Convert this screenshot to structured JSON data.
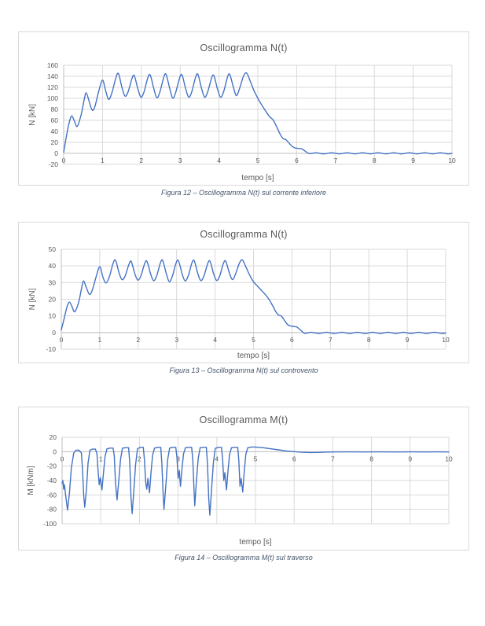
{
  "page": {
    "background": "#ffffff"
  },
  "styles": {
    "line_color": "#4472C4",
    "grid_color": "#D9D9D9",
    "axis_line_color": "#BFBFBF",
    "axis_text_color": "#595959",
    "title_color": "#595959",
    "caption_color": "#44546A",
    "panel_border_color": "#D9D9D9"
  },
  "chart_data": [
    {
      "type": "line",
      "title": "Oscillogramma N(t)",
      "xlabel": "tempo [s]",
      "ylabel": "N [kN]",
      "caption": "Figura 12 – Oscillogramma N(t) sul corrente inferiore",
      "xlim": [
        0,
        10
      ],
      "ylim": [
        -20,
        160
      ],
      "xticks": [
        0,
        1,
        2,
        3,
        4,
        5,
        6,
        7,
        8,
        9,
        10
      ],
      "yticks": [
        160,
        140,
        120,
        100,
        80,
        60,
        40,
        20,
        0,
        -20
      ],
      "grid": true,
      "legend": false,
      "line_color": "#4472C4",
      "smooth": true,
      "points": [
        [
          0,
          2
        ],
        [
          0.08,
          35
        ],
        [
          0.15,
          58
        ],
        [
          0.21,
          68
        ],
        [
          0.28,
          58
        ],
        [
          0.35,
          49
        ],
        [
          0.45,
          70
        ],
        [
          0.53,
          98
        ],
        [
          0.58,
          110
        ],
        [
          0.65,
          96
        ],
        [
          0.73,
          79
        ],
        [
          0.8,
          84
        ],
        [
          0.9,
          112
        ],
        [
          1.0,
          133
        ],
        [
          1.08,
          114
        ],
        [
          1.16,
          98
        ],
        [
          1.25,
          112
        ],
        [
          1.34,
          136
        ],
        [
          1.41,
          145
        ],
        [
          1.5,
          120
        ],
        [
          1.58,
          104
        ],
        [
          1.66,
          112
        ],
        [
          1.76,
          136
        ],
        [
          1.82,
          141
        ],
        [
          1.91,
          117
        ],
        [
          1.99,
          102
        ],
        [
          2.07,
          112
        ],
        [
          2.17,
          138
        ],
        [
          2.23,
          142
        ],
        [
          2.32,
          118
        ],
        [
          2.4,
          101
        ],
        [
          2.48,
          112
        ],
        [
          2.58,
          139
        ],
        [
          2.64,
          143
        ],
        [
          2.73,
          118
        ],
        [
          2.81,
          100
        ],
        [
          2.89,
          112
        ],
        [
          2.99,
          138
        ],
        [
          3.05,
          142
        ],
        [
          3.14,
          118
        ],
        [
          3.22,
          102
        ],
        [
          3.3,
          112
        ],
        [
          3.4,
          139
        ],
        [
          3.46,
          143
        ],
        [
          3.55,
          118
        ],
        [
          3.63,
          102
        ],
        [
          3.71,
          112
        ],
        [
          3.81,
          137
        ],
        [
          3.87,
          141
        ],
        [
          3.96,
          117
        ],
        [
          4.04,
          102
        ],
        [
          4.12,
          112
        ],
        [
          4.22,
          139
        ],
        [
          4.28,
          143
        ],
        [
          4.37,
          120
        ],
        [
          4.45,
          105
        ],
        [
          4.53,
          118
        ],
        [
          4.63,
          140
        ],
        [
          4.71,
          146
        ],
        [
          4.8,
          132
        ],
        [
          4.9,
          114
        ],
        [
          5.0,
          100
        ],
        [
          5.1,
          88
        ],
        [
          5.2,
          77
        ],
        [
          5.3,
          67
        ],
        [
          5.4,
          60
        ],
        [
          5.5,
          46
        ],
        [
          5.58,
          34
        ],
        [
          5.65,
          27
        ],
        [
          5.72,
          25
        ],
        [
          5.8,
          19
        ],
        [
          5.88,
          13
        ],
        [
          5.95,
          10
        ],
        [
          6.05,
          9
        ],
        [
          6.12,
          8.5
        ],
        [
          6.2,
          5
        ],
        [
          6.28,
          1
        ],
        [
          6.35,
          -0.5
        ],
        [
          6.5,
          1
        ],
        [
          6.7,
          -1
        ],
        [
          6.9,
          1
        ],
        [
          7.1,
          -1
        ],
        [
          7.3,
          1
        ],
        [
          7.5,
          -1
        ],
        [
          7.7,
          1
        ],
        [
          7.9,
          -1
        ],
        [
          8.1,
          1
        ],
        [
          8.3,
          -1
        ],
        [
          8.5,
          1
        ],
        [
          8.7,
          -1
        ],
        [
          8.9,
          1
        ],
        [
          9.1,
          -1
        ],
        [
          9.3,
          1
        ],
        [
          9.5,
          -1
        ],
        [
          9.7,
          1
        ],
        [
          9.9,
          -1
        ],
        [
          10,
          0
        ]
      ]
    },
    {
      "type": "line",
      "title": "Oscillogramma N(t)",
      "xlabel": "tempo [s]",
      "ylabel": "N [kN]",
      "caption": "Figura 13 – Oscillogramma N(t) sul controvento",
      "xlim": [
        0,
        10
      ],
      "ylim": [
        -10,
        50
      ],
      "xticks": [
        0,
        1,
        2,
        3,
        4,
        5,
        6,
        7,
        8,
        9,
        10
      ],
      "yticks": [
        50,
        40,
        30,
        20,
        10,
        0,
        -10
      ],
      "grid": true,
      "legend": false,
      "line_color": "#4472C4",
      "smooth": true,
      "points": [
        [
          0,
          1.5
        ],
        [
          0.08,
          9
        ],
        [
          0.15,
          15.5
        ],
        [
          0.21,
          18.3
        ],
        [
          0.28,
          15.5
        ],
        [
          0.35,
          12.5
        ],
        [
          0.45,
          18
        ],
        [
          0.53,
          27
        ],
        [
          0.58,
          31
        ],
        [
          0.65,
          27
        ],
        [
          0.73,
          23
        ],
        [
          0.8,
          25
        ],
        [
          0.9,
          33
        ],
        [
          1.0,
          39.5
        ],
        [
          1.08,
          33.5
        ],
        [
          1.16,
          29.8
        ],
        [
          1.25,
          33.5
        ],
        [
          1.34,
          41
        ],
        [
          1.41,
          43.5
        ],
        [
          1.5,
          36
        ],
        [
          1.58,
          31.8
        ],
        [
          1.66,
          34
        ],
        [
          1.76,
          41
        ],
        [
          1.82,
          42.7
        ],
        [
          1.91,
          35.5
        ],
        [
          1.99,
          31.5
        ],
        [
          2.07,
          34
        ],
        [
          2.17,
          41.5
        ],
        [
          2.23,
          42.7
        ],
        [
          2.32,
          35.5
        ],
        [
          2.4,
          31.2
        ],
        [
          2.48,
          34
        ],
        [
          2.58,
          42
        ],
        [
          2.64,
          43.2
        ],
        [
          2.73,
          35.5
        ],
        [
          2.81,
          30.5
        ],
        [
          2.89,
          34
        ],
        [
          2.99,
          42
        ],
        [
          3.05,
          43
        ],
        [
          3.14,
          35.5
        ],
        [
          3.22,
          31
        ],
        [
          3.3,
          34
        ],
        [
          3.4,
          42
        ],
        [
          3.46,
          43
        ],
        [
          3.55,
          35.5
        ],
        [
          3.63,
          31.2
        ],
        [
          3.71,
          34
        ],
        [
          3.81,
          41.5
        ],
        [
          3.87,
          42.8
        ],
        [
          3.96,
          35.5
        ],
        [
          4.04,
          31.3
        ],
        [
          4.12,
          34
        ],
        [
          4.22,
          41.8
        ],
        [
          4.28,
          42.7
        ],
        [
          4.37,
          36
        ],
        [
          4.45,
          31.8
        ],
        [
          4.53,
          35
        ],
        [
          4.63,
          41.5
        ],
        [
          4.71,
          43.6
        ],
        [
          4.8,
          39.5
        ],
        [
          4.9,
          34.5
        ],
        [
          5.0,
          30.5
        ],
        [
          5.1,
          28
        ],
        [
          5.2,
          25.5
        ],
        [
          5.3,
          23
        ],
        [
          5.4,
          20
        ],
        [
          5.5,
          16
        ],
        [
          5.58,
          12.5
        ],
        [
          5.65,
          10.5
        ],
        [
          5.72,
          10
        ],
        [
          5.8,
          7.5
        ],
        [
          5.88,
          5
        ],
        [
          5.95,
          4
        ],
        [
          6.05,
          3.6
        ],
        [
          6.12,
          3.4
        ],
        [
          6.2,
          2
        ],
        [
          6.28,
          0.3
        ],
        [
          6.35,
          -0.5
        ],
        [
          6.5,
          0.2
        ],
        [
          6.7,
          -0.6
        ],
        [
          6.9,
          0.2
        ],
        [
          7.1,
          -0.6
        ],
        [
          7.3,
          0.2
        ],
        [
          7.5,
          -0.6
        ],
        [
          7.7,
          0.2
        ],
        [
          7.9,
          -0.6
        ],
        [
          8.1,
          0.2
        ],
        [
          8.3,
          -0.6
        ],
        [
          8.5,
          0.2
        ],
        [
          8.7,
          -0.6
        ],
        [
          8.9,
          0.2
        ],
        [
          9.1,
          -0.6
        ],
        [
          9.3,
          0.2
        ],
        [
          9.5,
          -0.6
        ],
        [
          9.7,
          0.2
        ],
        [
          9.9,
          -0.6
        ],
        [
          10,
          -0.2
        ]
      ]
    },
    {
      "type": "line",
      "title": "Oscillogramma M(t)",
      "xlabel": "tempo [s]",
      "ylabel": "M [kNm]",
      "caption": "Figura 14 – Oscillogramma M(t) sul traverso",
      "xlim": [
        0,
        10
      ],
      "ylim": [
        -100,
        20
      ],
      "xticks": [
        0,
        1,
        2,
        3,
        4,
        5,
        6,
        7,
        8,
        9,
        10
      ],
      "yticks": [
        20,
        0,
        -20,
        -40,
        -60,
        -80,
        -100
      ],
      "grid": true,
      "legend": false,
      "line_color": "#4472C4",
      "smooth": false,
      "points": [
        [
          0,
          -44
        ],
        [
          0.02,
          -40
        ],
        [
          0.04,
          -52
        ],
        [
          0.06,
          -46
        ],
        [
          0.1,
          -64
        ],
        [
          0.14,
          -81
        ],
        [
          0.19,
          -58
        ],
        [
          0.24,
          -22
        ],
        [
          0.3,
          -2
        ],
        [
          0.36,
          2
        ],
        [
          0.44,
          2
        ],
        [
          0.5,
          -2
        ],
        [
          0.53,
          -28
        ],
        [
          0.56,
          -62
        ],
        [
          0.585,
          -77
        ],
        [
          0.63,
          -52
        ],
        [
          0.67,
          -16
        ],
        [
          0.72,
          2
        ],
        [
          0.78,
          3.5
        ],
        [
          0.86,
          3.5
        ],
        [
          0.9,
          -2
        ],
        [
          0.93,
          -27
        ],
        [
          0.96,
          -46
        ],
        [
          0.99,
          -36
        ],
        [
          1.03,
          -53
        ],
        [
          1.07,
          -30
        ],
        [
          1.11,
          -7
        ],
        [
          1.16,
          4
        ],
        [
          1.24,
          5
        ],
        [
          1.32,
          5
        ],
        [
          1.35,
          -6
        ],
        [
          1.38,
          -42
        ],
        [
          1.42,
          -67
        ],
        [
          1.46,
          -44
        ],
        [
          1.51,
          -11
        ],
        [
          1.56,
          5
        ],
        [
          1.64,
          5.5
        ],
        [
          1.72,
          5.5
        ],
        [
          1.75,
          -16
        ],
        [
          1.78,
          -62
        ],
        [
          1.81,
          -86
        ],
        [
          1.85,
          -58
        ],
        [
          1.9,
          -18
        ],
        [
          1.95,
          4
        ],
        [
          2.02,
          6
        ],
        [
          2.1,
          6
        ],
        [
          2.13,
          -12
        ],
        [
          2.16,
          -42
        ],
        [
          2.19,
          -52
        ],
        [
          2.22,
          -37
        ],
        [
          2.26,
          -57
        ],
        [
          2.3,
          -28
        ],
        [
          2.34,
          -5
        ],
        [
          2.39,
          5
        ],
        [
          2.47,
          6
        ],
        [
          2.55,
          6
        ],
        [
          2.58,
          -16
        ],
        [
          2.61,
          -56
        ],
        [
          2.635,
          -80
        ],
        [
          2.68,
          -48
        ],
        [
          2.73,
          -11
        ],
        [
          2.78,
          5
        ],
        [
          2.86,
          6
        ],
        [
          2.94,
          6
        ],
        [
          2.97,
          -8
        ],
        [
          3.0,
          -37
        ],
        [
          3.03,
          -26
        ],
        [
          3.06,
          -48
        ],
        [
          3.1,
          -24
        ],
        [
          3.14,
          -3
        ],
        [
          3.19,
          5.5
        ],
        [
          3.27,
          6
        ],
        [
          3.35,
          6
        ],
        [
          3.38,
          -12
        ],
        [
          3.41,
          -52
        ],
        [
          3.43,
          -75
        ],
        [
          3.47,
          -43
        ],
        [
          3.52,
          -9
        ],
        [
          3.57,
          5.5
        ],
        [
          3.65,
          6
        ],
        [
          3.73,
          6
        ],
        [
          3.76,
          -18
        ],
        [
          3.79,
          -64
        ],
        [
          3.82,
          -88
        ],
        [
          3.86,
          -56
        ],
        [
          3.91,
          -16
        ],
        [
          3.96,
          4.5
        ],
        [
          4.04,
          6
        ],
        [
          4.12,
          6
        ],
        [
          4.15,
          -10
        ],
        [
          4.18,
          -40
        ],
        [
          4.21,
          -29
        ],
        [
          4.25,
          -53
        ],
        [
          4.29,
          -26
        ],
        [
          4.33,
          -4
        ],
        [
          4.38,
          5.5
        ],
        [
          4.46,
          6
        ],
        [
          4.54,
          6
        ],
        [
          4.57,
          -12
        ],
        [
          4.6,
          -48
        ],
        [
          4.63,
          -37
        ],
        [
          4.67,
          -56
        ],
        [
          4.71,
          -28
        ],
        [
          4.75,
          -4
        ],
        [
          4.8,
          5.5
        ],
        [
          4.9,
          6.5
        ],
        [
          5.0,
          6.5
        ],
        [
          5.2,
          5.5
        ],
        [
          5.4,
          4
        ],
        [
          5.6,
          2.5
        ],
        [
          5.8,
          1
        ],
        [
          6.0,
          0
        ],
        [
          6.2,
          -0.8
        ],
        [
          6.4,
          -1.2
        ],
        [
          6.6,
          -1
        ],
        [
          6.8,
          -0.6
        ],
        [
          7.0,
          -0.4
        ],
        [
          7.4,
          -0.3
        ],
        [
          7.8,
          -0.4
        ],
        [
          8.2,
          -0.3
        ],
        [
          8.6,
          -0.4
        ],
        [
          9.0,
          -0.3
        ],
        [
          9.4,
          -0.4
        ],
        [
          9.7,
          -0.3
        ],
        [
          10,
          -0.4
        ]
      ]
    }
  ]
}
